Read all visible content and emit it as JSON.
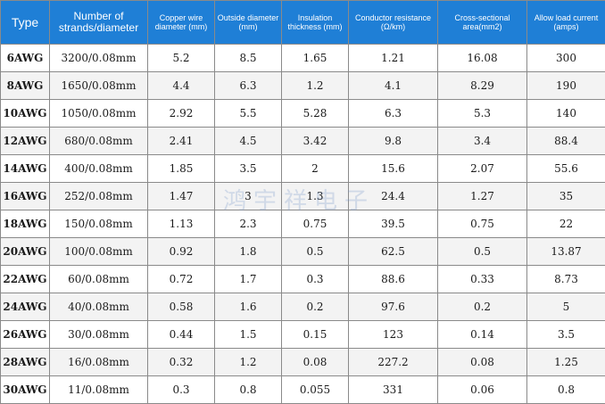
{
  "headers": {
    "type": "Type",
    "strands": "Number of strands/diameter",
    "copper": "Copper wire diameter (mm)",
    "outside": "Outside diameter (mm)",
    "insulation": "Insulation thickness (mm)",
    "resistance": "Conductor resistance (Ω/km)",
    "area": "Cross-sectional area(mm2)",
    "current": "Allow load current (amps)"
  },
  "rows": [
    {
      "type": "6AWG",
      "strands": "3200/0.08mm",
      "copper": "5.2",
      "outside": "8.5",
      "insulation": "1.65",
      "resistance": "1.21",
      "area": "16.08",
      "current": "300"
    },
    {
      "type": "8AWG",
      "strands": "1650/0.08mm",
      "copper": "4.4",
      "outside": "6.3",
      "insulation": "1.2",
      "resistance": "4.1",
      "area": "8.29",
      "current": "190"
    },
    {
      "type": "10AWG",
      "strands": "1050/0.08mm",
      "copper": "2.92",
      "outside": "5.5",
      "insulation": "5.28",
      "resistance": "6.3",
      "area": "5.3",
      "current": "140"
    },
    {
      "type": "12AWG",
      "strands": "680/0.08mm",
      "copper": "2.41",
      "outside": "4.5",
      "insulation": "3.42",
      "resistance": "9.8",
      "area": "3.4",
      "current": "88.4"
    },
    {
      "type": "14AWG",
      "strands": "400/0.08mm",
      "copper": "1.85",
      "outside": "3.5",
      "insulation": "2",
      "resistance": "15.6",
      "area": "2.07",
      "current": "55.6"
    },
    {
      "type": "16AWG",
      "strands": "252/0.08mm",
      "copper": "1.47",
      "outside": "3",
      "insulation": "1.3",
      "resistance": "24.4",
      "area": "1.27",
      "current": "35"
    },
    {
      "type": "18AWG",
      "strands": "150/0.08mm",
      "copper": "1.13",
      "outside": "2.3",
      "insulation": "0.75",
      "resistance": "39.5",
      "area": "0.75",
      "current": "22"
    },
    {
      "type": "20AWG",
      "strands": "100/0.08mm",
      "copper": "0.92",
      "outside": "1.8",
      "insulation": "0.5",
      "resistance": "62.5",
      "area": "0.5",
      "current": "13.87"
    },
    {
      "type": "22AWG",
      "strands": "60/0.08mm",
      "copper": "0.72",
      "outside": "1.7",
      "insulation": "0.3",
      "resistance": "88.6",
      "area": "0.33",
      "current": "8.73"
    },
    {
      "type": "24AWG",
      "strands": "40/0.08mm",
      "copper": "0.58",
      "outside": "1.6",
      "insulation": "0.2",
      "resistance": "97.6",
      "area": "0.2",
      "current": "5"
    },
    {
      "type": "26AWG",
      "strands": "30/0.08mm",
      "copper": "0.44",
      "outside": "1.5",
      "insulation": "0.15",
      "resistance": "123",
      "area": "0.14",
      "current": "3.5"
    },
    {
      "type": "28AWG",
      "strands": "16/0.08mm",
      "copper": "0.32",
      "outside": "1.2",
      "insulation": "0.08",
      "resistance": "227.2",
      "area": "0.08",
      "current": "1.25"
    },
    {
      "type": "30AWG",
      "strands": "11/0.08mm",
      "copper": "0.3",
      "outside": "0.8",
      "insulation": "0.055",
      "resistance": "331",
      "area": "0.06",
      "current": "0.8"
    }
  ],
  "watermark": "鸿宇祥电子",
  "colors": {
    "header_bg": "#1f7fd6",
    "header_text": "#ffffff"
  }
}
